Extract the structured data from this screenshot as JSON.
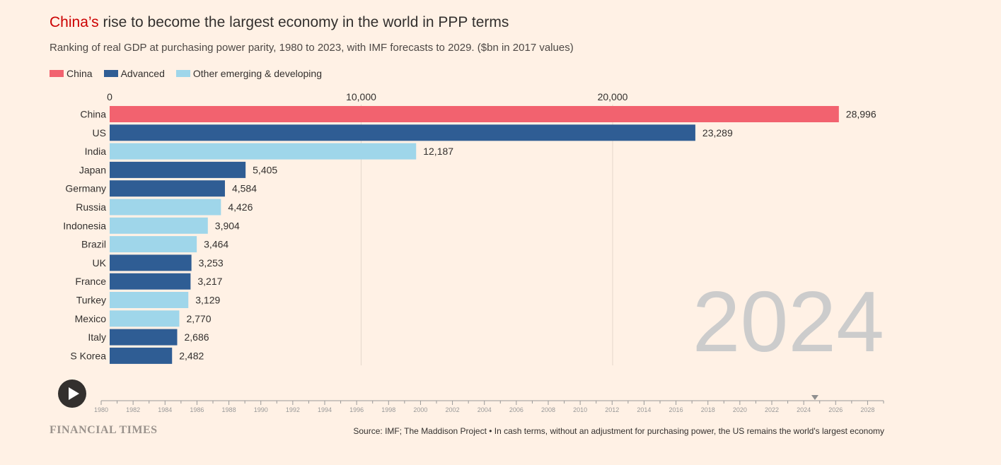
{
  "title": {
    "highlight": "China’s",
    "rest": " rise to become the largest economy in the world in PPP terms"
  },
  "subtitle": "Ranking of real GDP at purchasing power parity, 1980 to 2023, with IMF forecasts to 2029. ($bn in 2017 values)",
  "legend": [
    {
      "label": "China",
      "color": "#f2626f"
    },
    {
      "label": "Advanced",
      "color": "#2f5d94"
    },
    {
      "label": "Other emerging & developing",
      "color": "#9fd6ea"
    }
  ],
  "chart_data": {
    "type": "bar",
    "orientation": "horizontal",
    "year": "2024",
    "categories": [
      "China",
      "US",
      "India",
      "Japan",
      "Germany",
      "Russia",
      "Indonesia",
      "Brazil",
      "UK",
      "France",
      "Turkey",
      "Mexico",
      "Italy",
      "S Korea"
    ],
    "values": [
      28996,
      23289,
      12187,
      5405,
      4584,
      4426,
      3904,
      3464,
      3253,
      3217,
      3129,
      2770,
      2686,
      2482
    ],
    "value_labels": [
      "28,996",
      "23,289",
      "12,187",
      "5,405",
      "4,584",
      "4,426",
      "3,904",
      "3,464",
      "3,253",
      "3,217",
      "3,129",
      "2,770",
      "2,686",
      "2,482"
    ],
    "groups": [
      "China",
      "Advanced",
      "Other emerging & developing",
      "Advanced",
      "Advanced",
      "Other emerging & developing",
      "Other emerging & developing",
      "Other emerging & developing",
      "Advanced",
      "Advanced",
      "Other emerging & developing",
      "Other emerging & developing",
      "Advanced",
      "Advanced"
    ],
    "colors": {
      "China": "#f2626f",
      "Advanced": "#2f5d94",
      "Other emerging & developing": "#9fd6ea"
    },
    "x_ticks": [
      0,
      10000,
      20000
    ],
    "x_tick_labels": [
      "0",
      "10,000",
      "20,000"
    ],
    "xlim": [
      0,
      31000
    ],
    "grid": true,
    "legend_position": "top-left"
  },
  "timeline": {
    "years": [
      "1980",
      "1982",
      "1984",
      "1986",
      "1988",
      "1990",
      "1992",
      "1994",
      "1996",
      "1998",
      "2000",
      "2002",
      "2004",
      "2006",
      "2008",
      "2010",
      "2012",
      "2014",
      "2016",
      "2018",
      "2020",
      "2022",
      "2024",
      "2026",
      "2028"
    ],
    "start": 1980,
    "end": 2029,
    "current": 2024.7
  },
  "footer": {
    "logo": "FINANCIAL TIMES",
    "source": "Source: IMF; The Maddison Project • In cash terms, without an adjustment for purchasing power, the US remains the world's largest economy"
  },
  "colors": {
    "background": "#fff1e5",
    "title_highlight": "#cc0000",
    "year_watermark": "#cccccc"
  }
}
